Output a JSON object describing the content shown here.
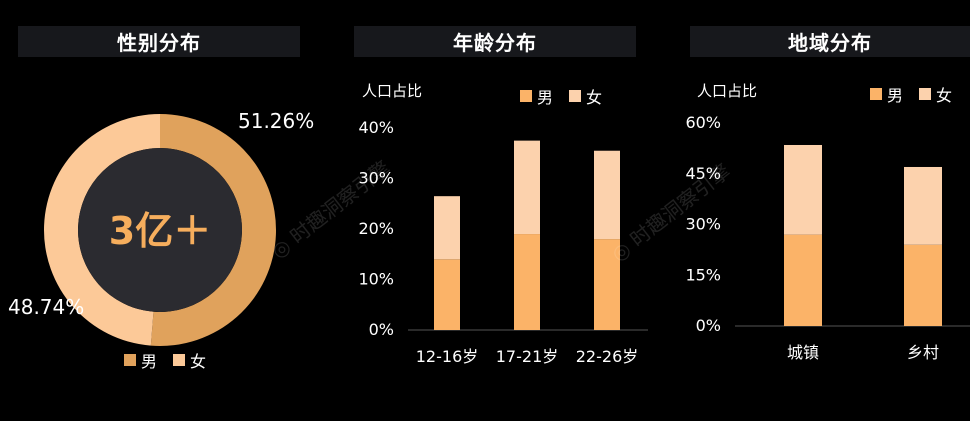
{
  "colors": {
    "male": "#e0a25c",
    "female": "#fcc998",
    "male_bar": "#fbb368",
    "female_bar": "#fcd2ad",
    "center": "#2b2b30",
    "accent_text": "#f6ae5d"
  },
  "watermark": "时趣洞察引擎",
  "gender": {
    "title": "性别分布",
    "center_label": "3亿＋",
    "legend": [
      "男",
      "女"
    ]
  },
  "age": {
    "title": "年龄分布",
    "ylabel": "人口占比",
    "legend": [
      "男",
      "女"
    ]
  },
  "region": {
    "title": "地域分布",
    "ylabel": "人口占比",
    "legend": [
      "男",
      "女"
    ]
  },
  "chart_data": [
    {
      "type": "pie",
      "title": "性别分布",
      "categories": [
        "男",
        "女"
      ],
      "values": [
        51.26,
        48.74
      ],
      "labels": [
        "51.26%",
        "48.74%"
      ],
      "donut": true,
      "legend_position": "bottom"
    },
    {
      "type": "bar",
      "stacked": true,
      "title": "年龄分布",
      "ylabel": "人口占比",
      "categories": [
        "12-16岁",
        "17-21岁",
        "22-26岁"
      ],
      "series": [
        {
          "name": "男",
          "values": [
            14,
            19,
            18
          ]
        },
        {
          "name": "女",
          "values": [
            12.5,
            18.5,
            17.5
          ]
        }
      ],
      "yticks": [
        "0%",
        "10%",
        "20%",
        "30%",
        "40%"
      ],
      "ylim": [
        0,
        40
      ],
      "legend_position": "top-right"
    },
    {
      "type": "bar",
      "stacked": true,
      "title": "地域分布",
      "ylabel": "人口占比",
      "categories": [
        "城镇",
        "乡村"
      ],
      "series": [
        {
          "name": "男",
          "values": [
            27,
            24
          ]
        },
        {
          "name": "女",
          "values": [
            26.5,
            23
          ]
        }
      ],
      "yticks": [
        "0%",
        "15%",
        "30%",
        "45%",
        "60%"
      ],
      "ylim": [
        0,
        60
      ],
      "legend_position": "top-right"
    }
  ]
}
